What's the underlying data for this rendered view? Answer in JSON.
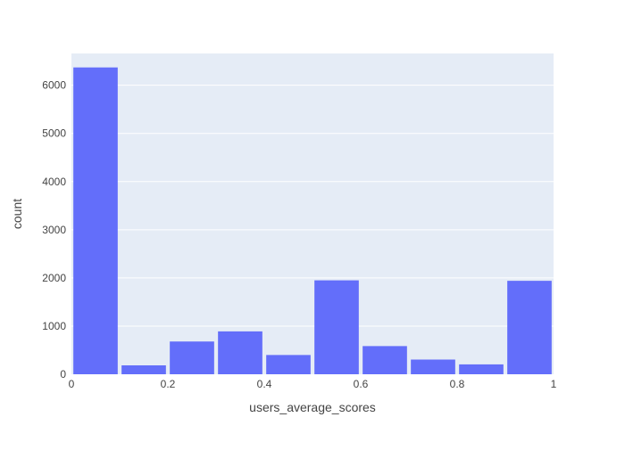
{
  "chart_data": {
    "type": "bar",
    "xlabel": "users_average_scores",
    "ylabel": "count",
    "xlim": [
      0,
      1
    ],
    "ylim": [
      0,
      6660
    ],
    "grid": true,
    "bin_width": 0.1,
    "bars": [
      {
        "x0": 0.0,
        "x1": 0.1,
        "value": 6370
      },
      {
        "x0": 0.1,
        "x1": 0.2,
        "value": 185
      },
      {
        "x0": 0.2,
        "x1": 0.3,
        "value": 680
      },
      {
        "x0": 0.3,
        "x1": 0.4,
        "value": 890
      },
      {
        "x0": 0.4,
        "x1": 0.5,
        "value": 400
      },
      {
        "x0": 0.5,
        "x1": 0.6,
        "value": 1950
      },
      {
        "x0": 0.6,
        "x1": 0.7,
        "value": 585
      },
      {
        "x0": 0.7,
        "x1": 0.8,
        "value": 305
      },
      {
        "x0": 0.8,
        "x1": 0.9,
        "value": 205
      },
      {
        "x0": 0.9,
        "x1": 1.0,
        "value": 1940
      }
    ],
    "x_ticks": [
      {
        "value": 0,
        "label": "0"
      },
      {
        "value": 0.2,
        "label": "0.2"
      },
      {
        "value": 0.4,
        "label": "0.4"
      },
      {
        "value": 0.6,
        "label": "0.6"
      },
      {
        "value": 0.8,
        "label": "0.8"
      },
      {
        "value": 1,
        "label": "1"
      }
    ],
    "y_ticks": [
      {
        "value": 0,
        "label": "0"
      },
      {
        "value": 1000,
        "label": "1000"
      },
      {
        "value": 2000,
        "label": "2000"
      },
      {
        "value": 3000,
        "label": "3000"
      },
      {
        "value": 4000,
        "label": "4000"
      },
      {
        "value": 5000,
        "label": "5000"
      },
      {
        "value": 6000,
        "label": "6000"
      }
    ],
    "colors": {
      "bar": "#636efa",
      "plot_background": "#e5ecf6",
      "grid": "#ffffff",
      "text": "#444444"
    }
  }
}
